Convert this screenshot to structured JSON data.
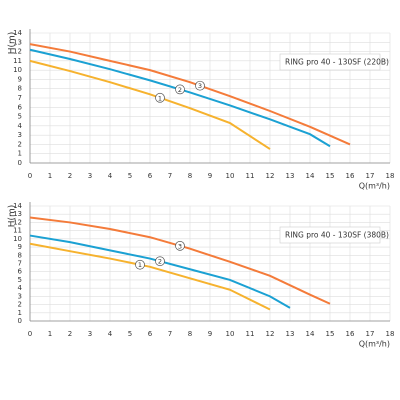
{
  "chart_data": [
    {
      "type": "line",
      "title": "RING pro 40 - 130SF (220B)",
      "xlabel": "Q(m³/h)",
      "ylabel": "H(m)",
      "xlim": [
        0,
        18
      ],
      "xticks": [
        0,
        1,
        2,
        3,
        4,
        5,
        6,
        7,
        8,
        9,
        10,
        11,
        12,
        13,
        14,
        15,
        16,
        17,
        18
      ],
      "ylim": [
        0,
        14
      ],
      "yticks": [
        0,
        1,
        2,
        3,
        4,
        5,
        6,
        7,
        8,
        9,
        10,
        11,
        12,
        13,
        14
      ],
      "grid": true,
      "series": [
        {
          "name": "1",
          "color": "#f6b22e",
          "x": [
            0,
            2,
            4,
            6,
            8,
            10,
            12
          ],
          "values": [
            11.0,
            9.9,
            8.7,
            7.4,
            5.9,
            4.3,
            1.5
          ]
        },
        {
          "name": "2",
          "color": "#1ba1d3",
          "x": [
            0,
            2,
            4,
            6,
            8,
            10,
            12,
            14,
            15
          ],
          "values": [
            12.2,
            11.2,
            10.1,
            8.9,
            7.6,
            6.2,
            4.7,
            3.1,
            1.8
          ]
        },
        {
          "name": "3",
          "color": "#f47b3a",
          "x": [
            0,
            2,
            4,
            6,
            8,
            10,
            12,
            14,
            16
          ],
          "values": [
            12.8,
            12.0,
            11.0,
            10.0,
            8.7,
            7.2,
            5.6,
            3.9,
            2.0
          ]
        }
      ]
    },
    {
      "type": "line",
      "title": "RING pro 40 - 130SF (380B)",
      "xlabel": "Q(m³/h)",
      "ylabel": "H(m)",
      "xlim": [
        0,
        18
      ],
      "xticks": [
        0,
        1,
        2,
        3,
        4,
        5,
        6,
        7,
        8,
        9,
        10,
        11,
        12,
        13,
        14,
        15,
        16,
        17,
        18
      ],
      "ylim": [
        0,
        14
      ],
      "yticks": [
        0,
        1,
        2,
        3,
        4,
        5,
        6,
        7,
        8,
        9,
        10,
        11,
        12,
        13,
        14
      ],
      "grid": true,
      "series": [
        {
          "name": "1",
          "color": "#f6b22e",
          "x": [
            0,
            2,
            4,
            6,
            8,
            10,
            12
          ],
          "values": [
            9.4,
            8.5,
            7.6,
            6.6,
            5.2,
            3.8,
            1.4
          ]
        },
        {
          "name": "2",
          "color": "#1ba1d3",
          "x": [
            0,
            2,
            4,
            6,
            8,
            10,
            12,
            13
          ],
          "values": [
            10.4,
            9.6,
            8.6,
            7.6,
            6.3,
            5.0,
            3.0,
            1.6
          ]
        },
        {
          "name": "3",
          "color": "#f47b3a",
          "x": [
            0,
            2,
            4,
            6,
            8,
            10,
            12,
            14,
            15
          ],
          "values": [
            12.6,
            12.0,
            11.2,
            10.2,
            8.8,
            7.2,
            5.5,
            3.2,
            2.1
          ]
        }
      ]
    }
  ]
}
